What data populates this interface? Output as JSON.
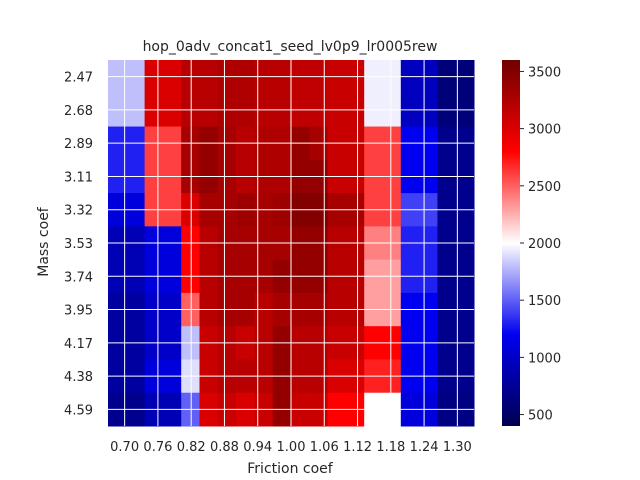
{
  "chart_data": {
    "type": "heatmap",
    "title": "hop_0adv_concat1_seed_lv0p9_lr0005rew",
    "xlabel": "Friction coef",
    "ylabel": "Mass coef",
    "x_tick_labels": [
      "0.70",
      "0.76",
      "0.82",
      "0.88",
      "0.94",
      "1.00",
      "1.06",
      "1.12",
      "1.18",
      "1.24",
      "1.30"
    ],
    "y_tick_labels": [
      "2.47",
      "2.68",
      "2.89",
      "3.11",
      "3.32",
      "3.53",
      "3.74",
      "3.95",
      "4.17",
      "4.38",
      "4.59"
    ],
    "colorbar": {
      "min": 400,
      "max": 3600,
      "ticks": [
        500,
        1000,
        1500,
        2000,
        2500,
        3000,
        3500
      ],
      "tick_labels": [
        "500",
        "1000",
        "1500",
        "2000",
        "2500",
        "3000",
        "3500"
      ],
      "colormap": "seismic",
      "center": 2000
    },
    "grid": true,
    "rows": 11,
    "cols": 11,
    "cells_per_tick": 2,
    "values": [
      [
        1800,
        1800,
        3000,
        3000,
        3200,
        3200,
        3250,
        3250,
        3200,
        3200,
        3150,
        3150,
        3100,
        3100,
        1950,
        1950,
        950,
        950,
        600,
        600
      ],
      [
        1800,
        1800,
        3000,
        3000,
        3200,
        3200,
        3250,
        3250,
        3200,
        3200,
        3150,
        3150,
        3100,
        3100,
        1950,
        1950,
        950,
        950,
        600,
        600
      ],
      [
        1300,
        1300,
        2600,
        2600,
        3300,
        3400,
        3300,
        3200,
        3250,
        3250,
        3400,
        3300,
        3100,
        3100,
        2600,
        2600,
        1200,
        1200,
        700,
        700
      ],
      [
        1300,
        1300,
        2600,
        2600,
        3300,
        3400,
        3300,
        3200,
        3250,
        3250,
        3400,
        3400,
        3100,
        3100,
        2600,
        2600,
        1200,
        1200,
        700,
        700
      ],
      [
        1100,
        1100,
        2600,
        2600,
        3000,
        3300,
        3300,
        3350,
        3300,
        3350,
        3500,
        3500,
        3300,
        3300,
        2600,
        2600,
        1400,
        1400,
        700,
        700
      ],
      [
        900,
        900,
        1100,
        1100,
        2800,
        3200,
        3300,
        3300,
        3300,
        3300,
        3400,
        3400,
        3200,
        3200,
        2400,
        2400,
        1300,
        1300,
        700,
        700
      ],
      [
        900,
        900,
        1100,
        1100,
        2800,
        3200,
        3300,
        3300,
        3300,
        3400,
        3400,
        3400,
        3200,
        3200,
        2300,
        2300,
        1300,
        1300,
        700,
        700
      ],
      [
        800,
        800,
        1000,
        1000,
        2500,
        3200,
        3300,
        3300,
        3200,
        3300,
        3300,
        3300,
        3200,
        3200,
        2300,
        2300,
        1200,
        1200,
        700,
        700
      ],
      [
        800,
        800,
        1000,
        1000,
        1800,
        3100,
        3200,
        3100,
        3200,
        3400,
        3200,
        3200,
        3100,
        3100,
        2800,
        2800,
        1200,
        1200,
        700,
        700
      ],
      [
        800,
        800,
        1100,
        1100,
        1900,
        3100,
        3200,
        3200,
        3200,
        3400,
        3200,
        3200,
        3000,
        3000,
        2700,
        2700,
        1200,
        1200,
        700,
        700
      ],
      [
        700,
        700,
        900,
        900,
        1500,
        3000,
        3100,
        3000,
        3100,
        3400,
        3100,
        3100,
        2800,
        2800,
        2000,
        2000,
        1100,
        1100,
        650,
        650
      ]
    ]
  }
}
